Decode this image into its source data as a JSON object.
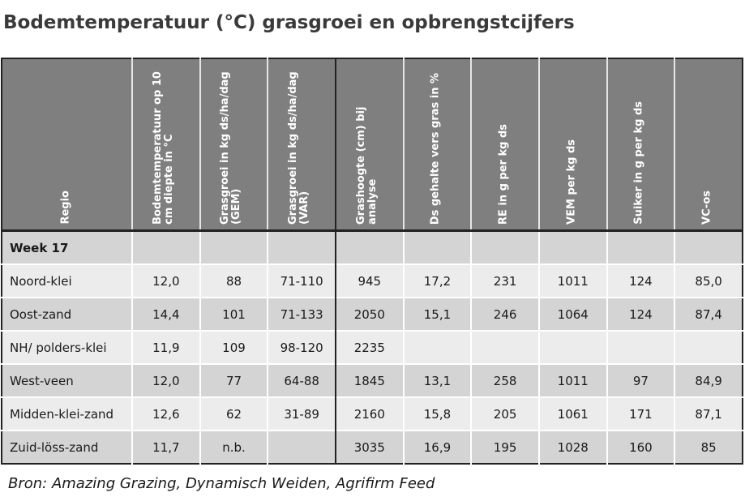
{
  "title": "Bodemtemperatuur (°C) grasgroei en opbrengstcijfers",
  "headers": [
    "Regio",
    "Bodemtemperatuur op 10 cm diepte in °C",
    "Grasgroei in kg ds/ha/dag (GEM)",
    "Grasgroei in kg ds/ha/dag (VAR)",
    "Grashoogte (cm) bij analyse",
    "Ds gehalte vers gras in %",
    "RE in g per kg ds",
    "VEM per kg ds",
    "Suiker in g per kg ds",
    "VC-os"
  ],
  "week_label": "Week 17",
  "rows": [
    [
      "Noord-klei",
      "12,0",
      "88",
      "71-110",
      "945",
      "17,2",
      "231",
      "1011",
      "124",
      "85,0"
    ],
    [
      "Oost-zand",
      "14,4",
      "101",
      "71-133",
      "2050",
      "15,1",
      "246",
      "1064",
      "124",
      "87,4"
    ],
    [
      "NH/ polders-klei",
      "11,9",
      "109",
      "98-120",
      "2235",
      "",
      "",
      "",
      "",
      ""
    ],
    [
      "West-veen",
      "12,0",
      "77",
      "64-88",
      "1845",
      "13,1",
      "258",
      "1011",
      "97",
      "84,9"
    ],
    [
      "Midden-klei-zand",
      "12,6",
      "62",
      "31-89",
      "2160",
      "15,8",
      "205",
      "1061",
      "171",
      "87,1"
    ],
    [
      "Zuid-löss-zand",
      "11,7",
      "n.b.",
      "",
      "3035",
      "16,9",
      "195",
      "1028",
      "160",
      "85"
    ]
  ],
  "source": "Bron: Amazing Grazing, Dynamisch Weiden, Agrifirm Feed"
}
